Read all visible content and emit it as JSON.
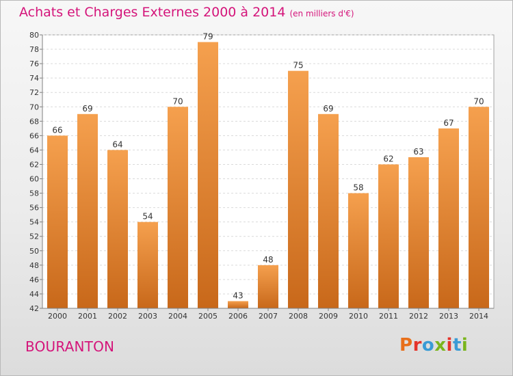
{
  "title": "Achats et Charges Externes 2000 à 2014",
  "unit": "(en milliers d'€)",
  "commune": "BOURANTON",
  "logo": "Proxiti",
  "colors": {
    "accent": "#d4147a",
    "bar_light": "#f5a04e",
    "bar_dark": "#c8681a",
    "logo_letters": [
      "#e86f1a",
      "#e5332a",
      "#3a9bd5",
      "#7ab51d",
      "#e5332a",
      "#3a9bd5",
      "#7ab51d"
    ]
  },
  "chart_data": {
    "type": "bar",
    "title": "Achats et Charges Externes 2000 à 2014",
    "categories": [
      "2000",
      "2001",
      "2002",
      "2003",
      "2004",
      "2005",
      "2006",
      "2007",
      "2008",
      "2009",
      "2010",
      "2011",
      "2012",
      "2013",
      "2014"
    ],
    "values": [
      66,
      69,
      64,
      54,
      70,
      79,
      43,
      48,
      75,
      69,
      58,
      62,
      63,
      67,
      70
    ],
    "ylim": [
      42,
      80
    ],
    "yticks": [
      42,
      44,
      46,
      48,
      50,
      52,
      54,
      56,
      58,
      60,
      62,
      64,
      66,
      68,
      70,
      72,
      74,
      76,
      78,
      80
    ],
    "grid": true,
    "xlabel": "",
    "ylabel": ""
  }
}
